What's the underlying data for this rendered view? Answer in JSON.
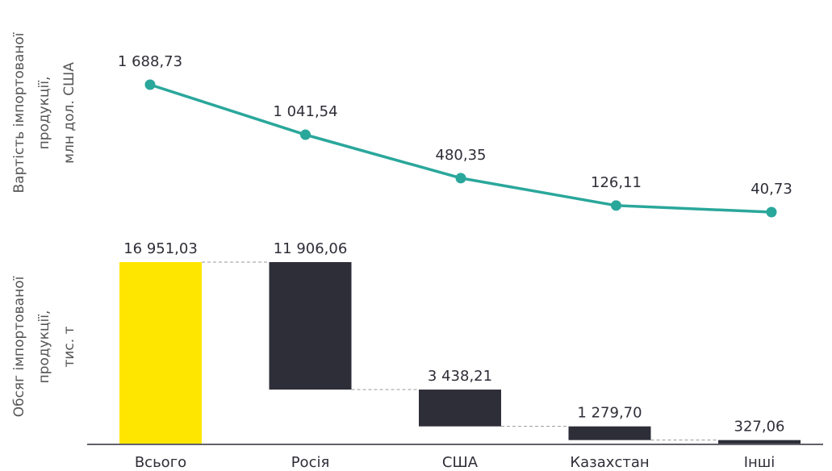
{
  "chart_data": [
    {
      "type": "line",
      "ylabel": [
        "Вартість імпортованої",
        "продукції,",
        "млн дол. США"
      ],
      "values": [
        1688.73,
        1041.54,
        480.35,
        126.11,
        40.73
      ],
      "value_labels": [
        "1 688,73",
        "1 041,54",
        "480,35",
        "126,11",
        "40,73"
      ],
      "color": "#2aa79b"
    },
    {
      "type": "waterfall",
      "ylabel": [
        "Обсяг імпортованої",
        "продукції,",
        "тис. т"
      ],
      "categories": [
        "Всього",
        "Росія",
        "США",
        "Казахстан",
        "Інші"
      ],
      "values": [
        16951.03,
        11906.06,
        3438.21,
        1279.7,
        327.06
      ],
      "value_labels": [
        "16 951,03",
        "11 906,06",
        "3 438,21",
        "1 279,70",
        "327,06"
      ],
      "total_color": "#ffe600",
      "color": "#2e2e38"
    }
  ]
}
